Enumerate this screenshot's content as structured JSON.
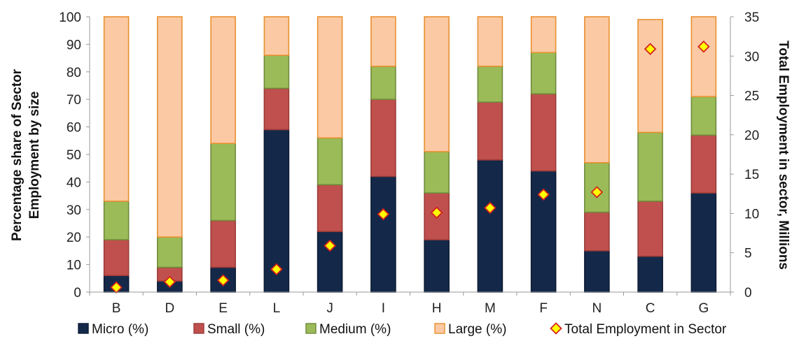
{
  "chart_data": {
    "type": "bar",
    "stacked": true,
    "categories": [
      "B",
      "D",
      "E",
      "L",
      "J",
      "I",
      "H",
      "M",
      "F",
      "N",
      "C",
      "G"
    ],
    "series": [
      {
        "name": "Micro (%)",
        "color": "#14294a",
        "border": "#0c1b33",
        "values": [
          6,
          4,
          9,
          59,
          22,
          42,
          19,
          48,
          44,
          15,
          13,
          36
        ]
      },
      {
        "name": "Small (%)",
        "color": "#c0504d",
        "border": "#9a3b38",
        "values": [
          13,
          5,
          17,
          15,
          17,
          28,
          17,
          21,
          28,
          14,
          20,
          21
        ]
      },
      {
        "name": "Medium (%)",
        "color": "#9bbb59",
        "border": "#6f8a3a",
        "values": [
          14,
          11,
          28,
          12,
          17,
          12,
          15,
          13,
          15,
          18,
          25,
          14
        ]
      },
      {
        "name": "Large (%)",
        "color": "#fbc9a3",
        "border": "#e9902f",
        "values": [
          67,
          80,
          46,
          14,
          44,
          18,
          49,
          18,
          13,
          53,
          41,
          29
        ]
      }
    ],
    "secondary_series": {
      "name": "Total Employment in Sector",
      "type": "scatter",
      "marker": "diamond",
      "color": "#ffff00",
      "border": "#d42020",
      "values": [
        0.6,
        1.3,
        1.5,
        2.9,
        5.9,
        9.9,
        10.1,
        10.7,
        12.4,
        12.7,
        30.9,
        31.2
      ]
    },
    "ylabel": "Percentage share of Sector Employment by size",
    "ylabel_lines": [
      "Percentage share of Sector",
      "Employment by size"
    ],
    "y2label": "Total Employment in sector, Millions",
    "ylim": [
      0,
      100
    ],
    "y2lim": [
      0,
      35
    ],
    "yticks": [
      0,
      10,
      20,
      30,
      40,
      50,
      60,
      70,
      80,
      90,
      100
    ],
    "y2ticks": [
      0,
      5,
      10,
      15,
      20,
      25,
      30,
      35
    ],
    "grid": false,
    "legend_position": "bottom"
  }
}
